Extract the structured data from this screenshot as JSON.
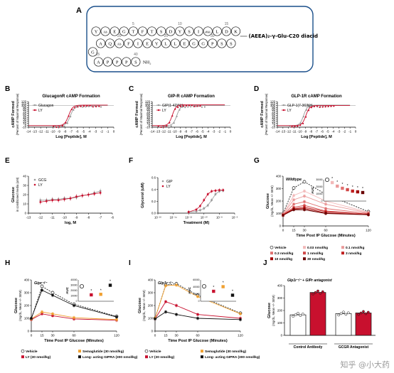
{
  "panelA": {
    "letter": "A",
    "residues_row1": [
      "Y",
      "Aib",
      "E",
      "G",
      "T",
      "F",
      "T",
      "S",
      "D",
      "Y",
      "S",
      "I",
      "αMeL",
      "L",
      "D",
      "K"
    ],
    "residues_row2": [
      "S",
      "S",
      "P",
      "G",
      "G",
      "E",
      "L",
      "L",
      "Y",
      "E",
      "I",
      "F",
      "Aib",
      "Q",
      "A"
    ],
    "residue_g": "G",
    "residues_row3": [
      "A",
      "P",
      "P",
      "P",
      "S"
    ],
    "k_numbers": [
      "5",
      "10",
      "15"
    ],
    "row2_numbers": [
      "30",
      "25",
      "20"
    ],
    "row3_numbers": [
      "35",
      "40"
    ],
    "nh2": "NH₂",
    "sidechain": "(AEEA)₂-γ-Glu-C20 diacid",
    "k_label": "K"
  },
  "chart_data": [
    {
      "id": "B",
      "type": "line",
      "title": "GlucagonR cAMP Formation",
      "ylabel": "cAMP Formed",
      "ylabel2": "(Percent of Maximal Response)",
      "xlabel": "Log [Peptide], M",
      "xlim": [
        -14,
        0
      ],
      "ylim": [
        -10,
        120
      ],
      "xticks": [
        "-14",
        "-13",
        "-12",
        "-11",
        "-10",
        "-9",
        "-8",
        "-7",
        "-6",
        "-5",
        "-4",
        "-3",
        "-2",
        "-1",
        "0"
      ],
      "yticks": [
        "-10",
        "0",
        "10",
        "20",
        "30",
        "40",
        "50",
        "60",
        "70",
        "80",
        "90",
        "100",
        "110",
        "120"
      ],
      "series": [
        {
          "name": "Glucagon",
          "color": "#9a9a9a",
          "marker": "circle",
          "ec50": -7.1,
          "top": 101
        },
        {
          "name": "LY",
          "color": "#c8102e",
          "marker": "circle",
          "ec50": -7.4,
          "top": 102
        }
      ],
      "legend": "left"
    },
    {
      "id": "C",
      "type": "line",
      "title": "GIP-R cAMP Formation",
      "ylabel": "cAMP Formed",
      "ylabel2": "(Percent of Maximal Response)",
      "xlabel": "Log [Peptide], M",
      "xlim": [
        -14,
        0
      ],
      "ylim": [
        -10,
        120
      ],
      "xticks": [
        "-14",
        "-13",
        "-12",
        "-11",
        "-10",
        "-9",
        "-8",
        "-7",
        "-6",
        "-5",
        "-4",
        "-3",
        "-2",
        "-1",
        "0"
      ],
      "yticks": [
        "-10",
        "0",
        "10",
        "20",
        "30",
        "40",
        "50",
        "60",
        "70",
        "80",
        "90",
        "100",
        "110",
        "120"
      ],
      "series": [
        {
          "name": "GIP(1-42)NH₂",
          "color": "#9a9a9a",
          "marker": "circle",
          "ec50": -9.6,
          "top": 100
        },
        {
          "name": "LY",
          "color": "#c8102e",
          "marker": "circle",
          "ec50": -10.4,
          "top": 104
        }
      ],
      "legend": "left"
    },
    {
      "id": "D",
      "type": "line",
      "title": "GLP-1R cAMP Formation",
      "ylabel": "cAMP Formed",
      "ylabel2": "(Percent of Maximal Response)",
      "xlabel": "Log [Peptide], M",
      "xlim": [
        -14,
        0
      ],
      "ylim": [
        -10,
        120
      ],
      "xticks": [
        "-14",
        "-13",
        "-12",
        "-11",
        "-10",
        "-9",
        "-8",
        "-7",
        "-6",
        "-5",
        "-4",
        "-3",
        "-2",
        "-1",
        "0"
      ],
      "yticks": [
        "-10",
        "0",
        "10",
        "20",
        "30",
        "40",
        "50",
        "60",
        "70",
        "80",
        "90",
        "100",
        "110",
        "120"
      ],
      "series": [
        {
          "name": "GLP-1(7-36)NH₂",
          "color": "#9a9a9a",
          "marker": "circle",
          "ec50": -9.3,
          "top": 102
        },
        {
          "name": "LY",
          "color": "#c8102e",
          "marker": "circle",
          "ec50": -8.9,
          "top": 100
        }
      ],
      "legend": "left"
    },
    {
      "id": "E",
      "type": "line",
      "ylabel": "Glucose",
      "ylabel2": "in conditioned media (uM)",
      "xlabel": "log, M",
      "xlim": [
        -13,
        -6
      ],
      "ylim": [
        0,
        40
      ],
      "xticks": [
        "-13",
        "-12",
        "-11",
        "-10",
        "-9",
        "-8",
        "-7",
        "-6"
      ],
      "yticks": [
        "0",
        "10",
        "20",
        "30",
        "40"
      ],
      "x": [
        -12,
        -11.5,
        -11,
        -10.5,
        -10,
        -9.5,
        -9,
        -8.5,
        -8,
        -7.5,
        -7
      ],
      "series": [
        {
          "name": "GCG",
          "color": "#9a9a9a",
          "values": [
            14,
            14,
            15,
            15,
            16,
            16,
            17,
            19,
            20,
            22,
            24
          ]
        },
        {
          "name": "LY",
          "color": "#c8102e",
          "values": [
            12,
            13,
            14,
            14,
            15,
            16,
            18,
            19,
            20,
            21,
            22
          ]
        }
      ],
      "legend": "top-left"
    },
    {
      "id": "F",
      "type": "line",
      "ylabel": "Glycerol (uM)",
      "xlabel": "Treatment (M)",
      "xlim": [
        -16,
        -6
      ],
      "ylim": [
        0,
        0.6
      ],
      "xticks": [
        "10⁻¹⁶",
        "10⁻¹⁴",
        "10⁻¹²",
        "10⁻¹⁰",
        "10⁻⁸",
        "10⁻⁶"
      ],
      "yticks": [
        "0.0",
        "0.2",
        "0.4",
        "0.6"
      ],
      "x": [
        -12,
        -11,
        -10.5,
        -10,
        -9.5,
        -9,
        -8.5,
        -8,
        -7.5
      ],
      "series": [
        {
          "name": "GIP",
          "color": "#9a9a9a",
          "values": [
            0.02,
            0.03,
            0.05,
            0.08,
            0.13,
            0.22,
            0.32,
            0.37,
            0.38
          ]
        },
        {
          "name": "LY",
          "color": "#c8102e",
          "values": [
            0.02,
            0.06,
            0.12,
            0.22,
            0.32,
            0.37,
            0.38,
            0.39,
            0.39
          ]
        }
      ],
      "legend": "top-left"
    },
    {
      "id": "G",
      "type": "line",
      "subtitle": "Wildtype",
      "ylabel": "Glucose",
      "ylabel2": "(mg/dL, Mean +/- SEM)",
      "xlabel": "Time Post IP Glucose (Minutes)",
      "xlim": [
        0,
        120
      ],
      "ylim": [
        0,
        400
      ],
      "xticks": [
        "0",
        "15",
        "30",
        "60",
        "120"
      ],
      "yticks": [
        "0",
        "100",
        "200",
        "300",
        "400"
      ],
      "x": [
        0,
        15,
        30,
        60,
        120
      ],
      "series": [
        {
          "name": "Vehicle",
          "color": "#222222",
          "marker": "open-circle",
          "dash": true,
          "values": [
            100,
            305,
            355,
            255,
            115
          ]
        },
        {
          "name": "0.03 nmol/kg",
          "color": "#f2b8b8",
          "values": [
            95,
            245,
            280,
            200,
            110
          ]
        },
        {
          "name": "0.1 nmol/kg",
          "color": "#ea9a9a",
          "values": [
            95,
            210,
            240,
            175,
            105
          ]
        },
        {
          "name": "0.3 nmol/kg",
          "color": "#e07070",
          "values": [
            90,
            175,
            195,
            140,
            100
          ]
        },
        {
          "name": "1 nmol/kg",
          "color": "#d04848",
          "values": [
            90,
            150,
            165,
            120,
            95
          ]
        },
        {
          "name": "3 nmol/kg",
          "color": "#c02020",
          "values": [
            88,
            140,
            150,
            115,
            95
          ]
        },
        {
          "name": "10 nmol/kg",
          "color": "#a00000",
          "values": [
            85,
            135,
            140,
            105,
            90
          ]
        },
        {
          "name": "30 nmol/kg",
          "color": "#6a0000",
          "values": [
            85,
            130,
            130,
            100,
            90
          ]
        }
      ],
      "inset": {
        "ylabel": "AUC",
        "yticks": [
          "0",
          "10000",
          "20000",
          "30000"
        ],
        "values": [
          30000,
          26000,
          21000,
          18000,
          16000,
          14000,
          13000,
          12000
        ]
      },
      "legend": "bottom"
    },
    {
      "id": "H",
      "type": "line",
      "subtitle": "Gipr⁻/⁻",
      "ylabel": "Glucose",
      "ylabel2": "(mg/dL, Mean +/- SEM)",
      "xlabel": "Time Post IP Glucose (Minutes)",
      "xlim": [
        0,
        120
      ],
      "ylim": [
        0,
        400
      ],
      "xticks": [
        "0",
        "15",
        "30",
        "60",
        "120"
      ],
      "yticks": [
        "0",
        "100",
        "200",
        "300",
        "400"
      ],
      "x": [
        0,
        15,
        30,
        60,
        120
      ],
      "series": [
        {
          "name": "Vehicle",
          "color": "#222222",
          "marker": "open-circle",
          "dash": true,
          "values": [
            95,
            350,
            300,
            210,
            115
          ]
        },
        {
          "name": "LY (30 nmol/kg)",
          "color": "#c8102e",
          "values": [
            90,
            135,
            120,
            95,
            85
          ]
        },
        {
          "name": "Semaglutide (30 nmol/kg)",
          "color": "#f0a030",
          "values": [
            95,
            150,
            135,
            105,
            90
          ]
        },
        {
          "name": "Long- acting GIPRA (300 nmol/kg)",
          "color": "#111111",
          "values": [
            100,
            320,
            280,
            200,
            110
          ]
        }
      ],
      "inset": {
        "ylabel": "AUC",
        "yticks": [
          "0",
          "10000",
          "20000",
          "30000",
          "40000"
        ],
        "values": [
          28000,
          12000,
          13000,
          30000
        ]
      },
      "legend": "bottom"
    },
    {
      "id": "I",
      "type": "line",
      "subtitle": "Glp1r⁻/⁻",
      "ylabel": "Glucose",
      "ylabel2": "(mg/dL, Mean +/- SEM)",
      "xlabel": "Time Post IP Glucose (Minutes)",
      "xlim": [
        0,
        120
      ],
      "ylim": [
        0,
        400
      ],
      "xticks": [
        "0",
        "15",
        "30",
        "60",
        "120"
      ],
      "yticks": [
        "0",
        "100",
        "200",
        "300",
        "400"
      ],
      "x": [
        0,
        15,
        30,
        60,
        120
      ],
      "series": [
        {
          "name": "Vehicle",
          "color": "#222222",
          "marker": "open-circle",
          "dash": true,
          "values": [
            100,
            360,
            370,
            280,
            140
          ]
        },
        {
          "name": "LY (30 nmol/kg)",
          "color": "#c8102e",
          "values": [
            95,
            230,
            200,
            130,
            100
          ]
        },
        {
          "name": "Semaglutide (30 nmol/kg)",
          "color": "#f0a030",
          "values": [
            100,
            355,
            360,
            270,
            135
          ]
        },
        {
          "name": "Long- acting GIPRA (300 nmol/kg)",
          "color": "#111111",
          "values": [
            95,
            150,
            130,
            100,
            90
          ]
        }
      ],
      "inset": {
        "ylabel": "AUC",
        "yticks": [
          "0",
          "20000",
          "40000",
          "60000"
        ],
        "values": [
          42000,
          28000,
          41000,
          17000
        ]
      },
      "legend": "bottom"
    },
    {
      "id": "J",
      "type": "bar",
      "subtitle": "Glp1r⁻/⁻ + GIPr antagonist",
      "ylabel": "Glucose",
      "ylabel2": "(mg/dL, Mean +/- SEM)",
      "ylim": [
        0,
        400
      ],
      "yticks": [
        "0",
        "100",
        "200",
        "300",
        "400"
      ],
      "groups": [
        "Control Antibody",
        "GCGR Antagonist"
      ],
      "series": [
        {
          "name": "Vehicle",
          "color": "#ffffff",
          "values": [
            165,
            175
          ]
        },
        {
          "name": "LY",
          "color": "#c8102e",
          "values": [
            345,
            180
          ]
        }
      ]
    }
  ],
  "watermark": "知乎 @小大药"
}
